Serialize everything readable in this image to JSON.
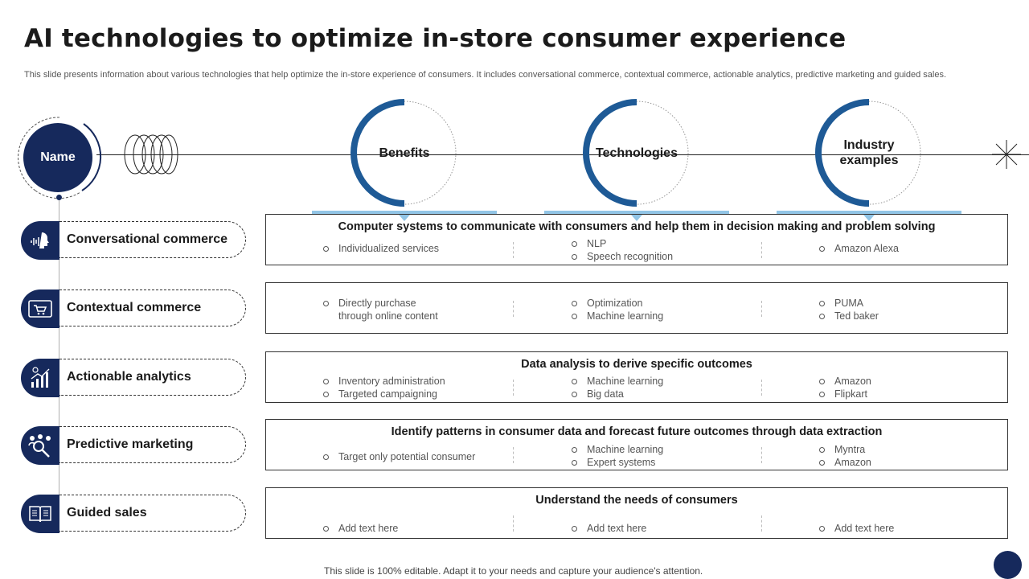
{
  "title": "AI technologies to optimize in-store consumer experience",
  "subtitle": "This slide presents information about various technologies that help optimize the in-store experience of consumers. It includes conversational commerce, contextual commerce, actionable analytics, predictive marketing and guided sales.",
  "name_label": "Name",
  "columns": [
    {
      "label": "Benefits"
    },
    {
      "label": "Technologies"
    },
    {
      "label": "Industry\nexamples"
    }
  ],
  "rows": [
    {
      "label": "Conversational commerce",
      "icon": "voice-assistant-icon",
      "heading": "Computer systems to communicate with consumers and help them in decision making and problem solving",
      "benefits": [
        "Individualized  services"
      ],
      "technologies": [
        "NLP",
        "Speech recognition"
      ],
      "examples": [
        "Amazon Alexa"
      ]
    },
    {
      "label": "Contextual commerce",
      "icon": "online-shopping-icon",
      "heading": "",
      "benefits": [
        "Directly purchase\nthrough online content"
      ],
      "technologies": [
        "Optimization",
        "Machine learning"
      ],
      "examples": [
        "PUMA",
        "Ted baker"
      ]
    },
    {
      "label": "Actionable analytics",
      "icon": "analytics-chart-icon",
      "heading": "Data analysis  to derive specific outcomes",
      "benefits": [
        "Inventory  administration",
        "Targeted  campaigning"
      ],
      "technologies": [
        "Machine learning",
        "Big data"
      ],
      "examples": [
        "Amazon",
        "Flipkart"
      ]
    },
    {
      "label": "Predictive marketing",
      "icon": "people-search-icon",
      "heading": "Identify patterns in consumer data and forecast future outcomes through data extraction",
      "benefits": [
        "Target  only potential consumer"
      ],
      "technologies": [
        "Machine learning",
        "Expert systems"
      ],
      "examples": [
        "Myntra",
        "Amazon"
      ]
    },
    {
      "label": "Guided sales",
      "icon": "open-book-icon",
      "heading": "Understand the needs of consumers",
      "benefits": [
        "Add text here"
      ],
      "technologies": [
        "Add text here"
      ],
      "examples": [
        "Add text here"
      ]
    }
  ],
  "footer": "This slide is 100% editable. Adapt it to your needs and capture your audience's attention.",
  "colors": {
    "navy": "#16295c",
    "ring_blue": "#1e5a96",
    "light_blue": "#92c5e6"
  }
}
